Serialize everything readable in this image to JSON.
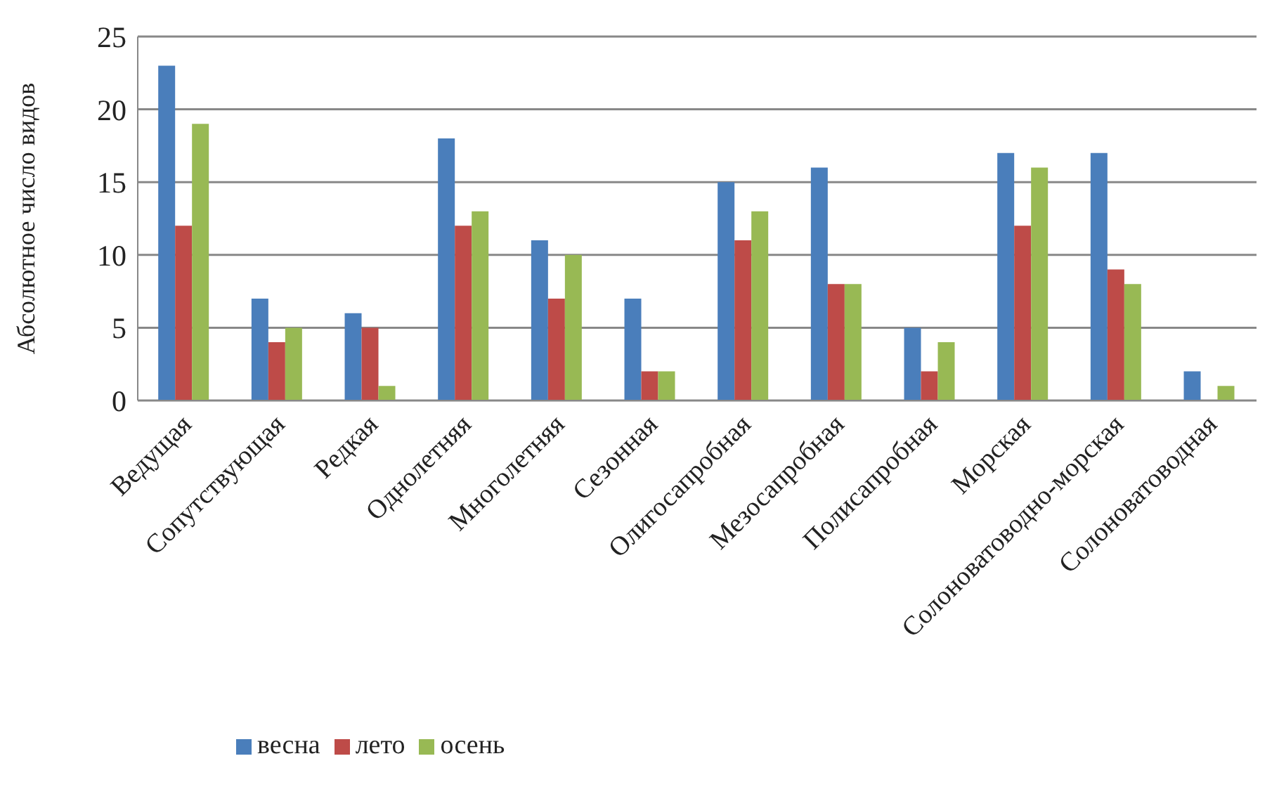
{
  "chart_data": {
    "type": "bar",
    "ylabel": "Абсолютное число видов",
    "categories": [
      "Ведущая",
      "Сопутствующая",
      "Редкая",
      "Однолетняя",
      "Многолетняя",
      "Сезонная",
      "Олигосапробная",
      "Мезосапробная",
      "Полисапробная",
      "Морская",
      "Солоноватоводно-морская",
      "Солоноватоводная"
    ],
    "series": [
      {
        "name": "весна",
        "color": "#4a7ebb",
        "values": [
          23,
          7,
          6,
          18,
          11,
          7,
          15,
          16,
          5,
          17,
          17,
          2
        ]
      },
      {
        "name": "лето",
        "color": "#be4b48",
        "values": [
          12,
          4,
          5,
          12,
          7,
          2,
          11,
          8,
          2,
          12,
          9,
          0
        ]
      },
      {
        "name": "осень",
        "color": "#98b954",
        "values": [
          19,
          5,
          1,
          13,
          10,
          2,
          13,
          8,
          4,
          16,
          8,
          1
        ]
      }
    ],
    "ylim": [
      0,
      25
    ],
    "yticks": [
      0,
      5,
      10,
      15,
      20,
      25
    ],
    "grid": "y",
    "legend": "bottom left"
  }
}
